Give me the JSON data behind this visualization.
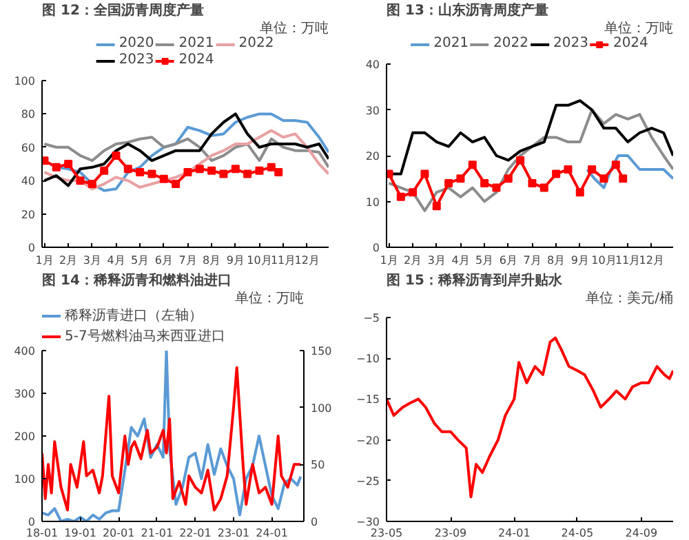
{
  "chart_data": [
    {
      "type": "line",
      "title": "图 12：全国沥青周度产量",
      "annotations": [
        "单位：万吨"
      ],
      "xlim": [
        0.9,
        12.9
      ],
      "xticks": [
        {
          "value": 1,
          "label": "1月"
        },
        {
          "value": 2,
          "label": "2月"
        },
        {
          "value": 3,
          "label": "3月"
        },
        {
          "value": 4,
          "label": "4月"
        },
        {
          "value": 5,
          "label": "5月"
        },
        {
          "value": 6,
          "label": "6月"
        },
        {
          "value": 7,
          "label": "7月"
        },
        {
          "value": 8,
          "label": "8月"
        },
        {
          "value": 9,
          "label": "9月"
        },
        {
          "value": 10,
          "label": "10月"
        },
        {
          "value": 11,
          "label": "11月"
        },
        {
          "value": 12,
          "label": "12月"
        }
      ],
      "ylim": [
        0,
        100
      ],
      "yticks": [
        0,
        20,
        40,
        60,
        80,
        100
      ],
      "legend": "top",
      "x": [
        1,
        1.5,
        2,
        2.5,
        3,
        3.5,
        4,
        4.5,
        5,
        5.5,
        6,
        6.5,
        7,
        7.5,
        8,
        8.5,
        9,
        9.5,
        10,
        10.5,
        11,
        11.5,
        12,
        12.5,
        12.9
      ],
      "series": [
        {
          "name": "2020",
          "color": "#5b9bd5",
          "values": [
            null,
            48,
            47,
            45,
            38,
            34,
            35,
            45,
            48,
            55,
            60,
            62,
            72,
            70,
            67,
            68,
            75,
            78,
            80,
            80,
            76,
            76,
            75,
            66,
            57
          ]
        },
        {
          "name": "2021",
          "color": "#8c8c8c",
          "values": [
            62,
            60,
            60,
            55,
            52,
            58,
            62,
            63,
            65,
            66,
            60,
            62,
            65,
            60,
            52,
            55,
            60,
            62,
            52,
            65,
            60,
            58,
            58,
            57,
            48
          ]
        },
        {
          "name": "2022",
          "color": "#e8a0a0",
          "values": [
            45,
            42,
            40,
            40,
            35,
            38,
            42,
            40,
            36,
            38,
            40,
            42,
            45,
            50,
            55,
            58,
            62,
            62,
            66,
            70,
            66,
            68,
            60,
            50,
            44
          ]
        },
        {
          "name": "2023",
          "color": "#000000",
          "values": [
            40,
            43,
            37,
            47,
            48,
            50,
            58,
            62,
            58,
            52,
            55,
            58,
            58,
            58,
            68,
            75,
            80,
            68,
            60,
            62,
            62,
            62,
            60,
            62,
            53
          ]
        },
        {
          "name": "2024",
          "color": "#ff0000",
          "marker": "square",
          "x": [
            1,
            1.5,
            2,
            2.5,
            3,
            3.5,
            4,
            4.5,
            5,
            5.5,
            6,
            6.5,
            7,
            7.5,
            8,
            8.5,
            9,
            9.5,
            10,
            10.5,
            10.8
          ],
          "values": [
            52,
            48,
            50,
            40,
            38,
            46,
            55,
            47,
            45,
            44,
            41,
            38,
            45,
            47,
            46,
            44,
            47,
            44,
            46,
            48,
            45
          ]
        }
      ]
    },
    {
      "type": "line",
      "title": "图 13：山东沥青周度产量",
      "annotations": [
        "单位：万吨"
      ],
      "xlim": [
        0.9,
        12.9
      ],
      "xticks": [
        {
          "value": 1,
          "label": "1月"
        },
        {
          "value": 2,
          "label": "2月"
        },
        {
          "value": 3,
          "label": "3月"
        },
        {
          "value": 4,
          "label": "4月"
        },
        {
          "value": 5,
          "label": "5月"
        },
        {
          "value": 6,
          "label": "6月"
        },
        {
          "value": 7,
          "label": "7月"
        },
        {
          "value": 8,
          "label": "8月"
        },
        {
          "value": 9,
          "label": "9月"
        },
        {
          "value": 10,
          "label": "10月"
        },
        {
          "value": 11,
          "label": "11月"
        },
        {
          "value": 12,
          "label": "12月"
        }
      ],
      "ylim": [
        0,
        40
      ],
      "yticks": [
        0,
        10,
        20,
        30,
        40
      ],
      "legend": "top",
      "x": [
        1,
        1.5,
        2,
        2.5,
        3,
        3.5,
        4,
        4.5,
        5,
        5.5,
        6,
        6.5,
        7,
        7.5,
        8,
        8.5,
        9,
        9.5,
        10,
        10.5,
        11,
        11.5,
        12,
        12.5,
        12.9
      ],
      "series": [
        {
          "name": "2021",
          "color": "#5b9bd5",
          "x": [
            9.3,
            9.6,
            10,
            10.3,
            10.6,
            11,
            11.5,
            12,
            12.5,
            12.9
          ],
          "values": [
            17,
            15,
            13,
            17,
            20,
            20,
            17,
            17,
            17,
            15
          ]
        },
        {
          "name": "2022",
          "color": "#8c8c8c",
          "values": [
            14,
            13,
            12,
            8,
            12,
            13,
            11,
            13,
            10,
            12,
            17,
            20,
            22,
            24,
            24,
            23,
            23,
            30,
            27,
            29,
            28,
            29,
            24,
            20,
            17
          ]
        },
        {
          "name": "2023",
          "color": "#000000",
          "values": [
            16,
            16,
            25,
            25,
            23,
            22,
            25,
            23,
            24,
            20,
            19,
            21,
            22,
            23,
            31,
            31,
            32,
            30,
            26,
            26,
            23,
            25,
            26,
            25,
            20
          ]
        },
        {
          "name": "2024",
          "color": "#ff0000",
          "marker": "square",
          "x": [
            1,
            1.5,
            2,
            2.5,
            3,
            3.5,
            4,
            4.5,
            5,
            5.5,
            6,
            6.5,
            7,
            7.5,
            8,
            8.5,
            9,
            9.5,
            10,
            10.5,
            10.8
          ],
          "values": [
            16,
            11,
            12,
            16,
            9,
            14,
            15,
            18,
            14,
            13,
            15,
            19,
            14,
            13,
            16,
            17,
            12,
            17,
            15,
            18,
            15
          ]
        }
      ]
    },
    {
      "type": "line",
      "title": "图 14：稀释沥青和燃料油进口",
      "annotations": [
        "单位：万吨"
      ],
      "xlim": [
        "2018-01",
        "2024-11"
      ],
      "xticks": [
        {
          "value": "2018-01",
          "label": "18-01"
        },
        {
          "value": "2019-01",
          "label": "19-01"
        },
        {
          "value": "2020-01",
          "label": "20-01"
        },
        {
          "value": "2021-01",
          "label": "21-01"
        },
        {
          "value": "2022-01",
          "label": "22-01"
        },
        {
          "value": "2023-01",
          "label": "23-01"
        },
        {
          "value": "2024-01",
          "label": "24-01"
        }
      ],
      "ylim": [
        0,
        400
      ],
      "yticks": [
        0,
        100,
        200,
        300,
        400
      ],
      "y2lim": [
        0,
        150
      ],
      "y2ticks": [
        0,
        50,
        100,
        150
      ],
      "legend": "top left",
      "series": [
        {
          "name": "稀释沥青进口（左轴）",
          "color": "#5b9bd5",
          "x": [
            "2018-01",
            "2018-03",
            "2018-05",
            "2018-07",
            "2018-09",
            "2018-11",
            "2019-01",
            "2019-03",
            "2019-05",
            "2019-07",
            "2019-09",
            "2019-11",
            "2020-01",
            "2020-03",
            "2020-05",
            "2020-07",
            "2020-09",
            "2020-11",
            "2021-01",
            "2021-03",
            "2021-04",
            "2021-05",
            "2021-07",
            "2021-09",
            "2021-11",
            "2022-01",
            "2022-03",
            "2022-05",
            "2022-07",
            "2022-09",
            "2022-11",
            "2023-01",
            "2023-03",
            "2023-05",
            "2023-07",
            "2023-09",
            "2023-11",
            "2024-01",
            "2024-03",
            "2024-05",
            "2024-07",
            "2024-09",
            "2024-10"
          ],
          "values": [
            20,
            15,
            30,
            0,
            5,
            0,
            10,
            0,
            15,
            5,
            20,
            25,
            25,
            120,
            220,
            200,
            240,
            150,
            180,
            150,
            400,
            170,
            40,
            80,
            150,
            160,
            100,
            180,
            110,
            170,
            130,
            100,
            15,
            100,
            130,
            200,
            130,
            60,
            30,
            90,
            100,
            85,
            105
          ]
        },
        {
          "name": "5-7号燃料油马来西亚进口",
          "color": "#ff0000",
          "axis": "y2",
          "x": [
            "2018-01",
            "2018-02",
            "2018-03",
            "2018-04",
            "2018-05",
            "2018-07",
            "2018-09",
            "2018-10",
            "2018-12",
            "2019-02",
            "2019-03",
            "2019-05",
            "2019-07",
            "2019-08",
            "2019-10",
            "2019-11",
            "2020-01",
            "2020-03",
            "2020-04",
            "2020-05",
            "2020-06",
            "2020-08",
            "2020-10",
            "2020-11",
            "2021-01",
            "2021-03",
            "2021-04",
            "2021-05",
            "2021-06",
            "2021-08",
            "2021-10",
            "2021-11",
            "2022-01",
            "2022-03",
            "2022-05",
            "2022-07",
            "2022-09",
            "2022-11",
            "2023-01",
            "2023-02",
            "2023-04",
            "2023-05",
            "2023-07",
            "2023-09",
            "2023-11",
            "2024-01",
            "2024-03",
            "2024-04",
            "2024-06",
            "2024-08",
            "2024-10"
          ],
          "values": [
            60,
            20,
            50,
            25,
            70,
            30,
            10,
            50,
            30,
            70,
            40,
            45,
            25,
            40,
            110,
            40,
            25,
            75,
            50,
            65,
            70,
            55,
            80,
            60,
            65,
            80,
            60,
            90,
            20,
            35,
            15,
            40,
            30,
            25,
            45,
            10,
            20,
            40,
            100,
            135,
            50,
            15,
            50,
            25,
            30,
            15,
            75,
            40,
            30,
            50,
            50
          ]
        }
      ]
    },
    {
      "type": "line",
      "title": "图 15：稀释沥青到岸升贴水",
      "annotations": [
        "单位：美元/桶"
      ],
      "xlim": [
        "2023-05-01",
        "2024-11-01"
      ],
      "xticks": [
        {
          "value": "2023-05-01",
          "label": "23-05"
        },
        {
          "value": "2023-09-01",
          "label": "23-09"
        },
        {
          "value": "2024-01-01",
          "label": "24-01"
        },
        {
          "value": "2024-05-01",
          "label": "24-05"
        },
        {
          "value": "2024-09-01",
          "label": "24-09"
        }
      ],
      "ylim": [
        -30,
        -5
      ],
      "yticks": [
        -30,
        -25,
        -20,
        -15,
        -10,
        -5
      ],
      "series": [
        {
          "color": "#ff0000",
          "x": [
            "2023-05-01",
            "2023-05-15",
            "2023-06-01",
            "2023-06-15",
            "2023-07-01",
            "2023-07-15",
            "2023-08-01",
            "2023-08-15",
            "2023-09-01",
            "2023-09-15",
            "2023-10-01",
            "2023-10-10",
            "2023-10-20",
            "2023-11-01",
            "2023-11-15",
            "2023-12-01",
            "2023-12-15",
            "2024-01-01",
            "2024-01-10",
            "2024-01-25",
            "2024-02-10",
            "2024-02-25",
            "2024-03-10",
            "2024-03-20",
            "2024-04-01",
            "2024-04-15",
            "2024-05-01",
            "2024-05-15",
            "2024-06-01",
            "2024-06-15",
            "2024-07-01",
            "2024-07-15",
            "2024-08-01",
            "2024-08-15",
            "2024-09-01",
            "2024-09-15",
            "2024-10-01",
            "2024-10-15",
            "2024-10-25",
            "2024-11-01"
          ],
          "values": [
            -15,
            -17,
            -16,
            -15.5,
            -15,
            -16,
            -18,
            -19,
            -19,
            -20,
            -21,
            -27,
            -23,
            -24,
            -22,
            -20,
            -17,
            -15,
            -10.5,
            -13,
            -11,
            -12,
            -8,
            -7.5,
            -9,
            -11,
            -11.5,
            -12,
            -14,
            -16,
            -15,
            -14,
            -15,
            -13.5,
            -13,
            -13,
            -11,
            -12,
            -12.5,
            -11.5
          ]
        }
      ]
    }
  ]
}
